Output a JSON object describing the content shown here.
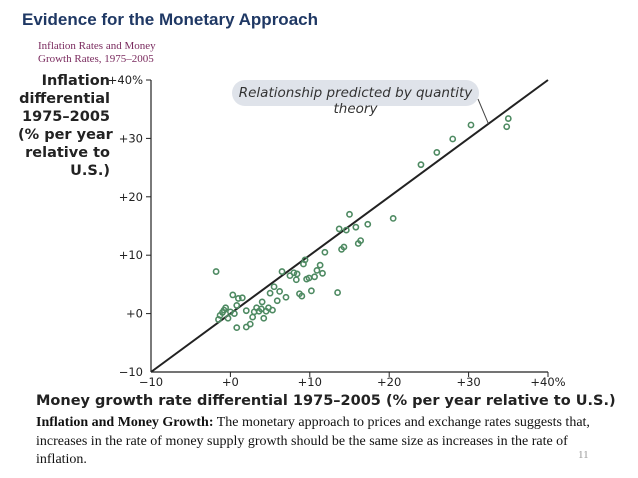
{
  "slide": {
    "title": "Evidence for the Monetary Approach",
    "caption_line1": "Inflation Rates and Money",
    "caption_line2": "Growth Rates, 1975–2005",
    "description_bold": "Inflation and Money Growth:",
    "description_text": " The monetary approach to prices and exchange rates suggests that, increases in the rate of money supply growth should be the same size as increases in the rate of inflation.",
    "page_number": "11"
  },
  "chart_data": {
    "type": "scatter",
    "ylabel_lines": [
      "Inflation",
      "differential",
      "1975–2005",
      "(% per year",
      "relative to",
      "U.S.)"
    ],
    "xlabel": "Money growth rate differential 1975–2005 (% per year relative to U.S.)",
    "xlim": [
      -10,
      40
    ],
    "ylim": [
      -10,
      40
    ],
    "x_ticks": [
      "−10",
      "+0",
      "+10",
      "+20",
      "+30",
      "+40%"
    ],
    "y_ticks": [
      "−10",
      "+0",
      "+10",
      "+20",
      "+30",
      "+40%"
    ],
    "reference_line": {
      "label": "Relationship predicted by quantity theory",
      "from": [
        -10,
        -10
      ],
      "to": [
        40,
        40
      ]
    },
    "point_color": "#4e8a62",
    "line_color": "#222222",
    "points": [
      [
        -1.8,
        7.2
      ],
      [
        -1.5,
        -1.0
      ],
      [
        -1.3,
        -0.3
      ],
      [
        -1.0,
        0.2
      ],
      [
        -0.8,
        0.6
      ],
      [
        -0.6,
        1.0
      ],
      [
        -0.3,
        -0.8
      ],
      [
        0.0,
        0.3
      ],
      [
        0.3,
        3.2
      ],
      [
        0.5,
        0.0
      ],
      [
        0.8,
        1.4
      ],
      [
        1.0,
        2.6
      ],
      [
        0.8,
        -2.4
      ],
      [
        1.5,
        2.7
      ],
      [
        2.0,
        0.5
      ],
      [
        2.0,
        -2.3
      ],
      [
        2.5,
        -1.8
      ],
      [
        2.8,
        -0.6
      ],
      [
        3.0,
        0.3
      ],
      [
        3.3,
        1.0
      ],
      [
        3.6,
        0.4
      ],
      [
        3.9,
        0.8
      ],
      [
        4.0,
        2.0
      ],
      [
        4.2,
        -0.8
      ],
      [
        4.5,
        0.4
      ],
      [
        4.8,
        1.0
      ],
      [
        5.0,
        3.5
      ],
      [
        5.3,
        0.6
      ],
      [
        5.5,
        4.6
      ],
      [
        5.9,
        2.2
      ],
      [
        6.2,
        3.8
      ],
      [
        6.5,
        7.2
      ],
      [
        7.0,
        2.8
      ],
      [
        7.5,
        6.5
      ],
      [
        8.0,
        7.0
      ],
      [
        8.3,
        5.8
      ],
      [
        8.4,
        6.8
      ],
      [
        8.7,
        3.4
      ],
      [
        9.0,
        3.0
      ],
      [
        9.2,
        8.5
      ],
      [
        9.4,
        9.2
      ],
      [
        9.6,
        5.9
      ],
      [
        9.9,
        6.1
      ],
      [
        10.2,
        3.9
      ],
      [
        10.6,
        6.3
      ],
      [
        10.9,
        7.4
      ],
      [
        11.3,
        8.3
      ],
      [
        11.6,
        6.9
      ],
      [
        11.9,
        10.5
      ],
      [
        13.5,
        3.6
      ],
      [
        13.7,
        14.5
      ],
      [
        14.0,
        11.0
      ],
      [
        14.3,
        11.4
      ],
      [
        14.6,
        14.3
      ],
      [
        15.0,
        17.0
      ],
      [
        15.8,
        14.8
      ],
      [
        16.1,
        12.0
      ],
      [
        16.4,
        12.5
      ],
      [
        17.3,
        15.3
      ],
      [
        20.5,
        16.3
      ],
      [
        24.0,
        25.5
      ],
      [
        26.0,
        27.6
      ],
      [
        28.0,
        29.9
      ],
      [
        30.3,
        32.3
      ],
      [
        34.8,
        32.0
      ],
      [
        35.0,
        33.4
      ]
    ]
  }
}
